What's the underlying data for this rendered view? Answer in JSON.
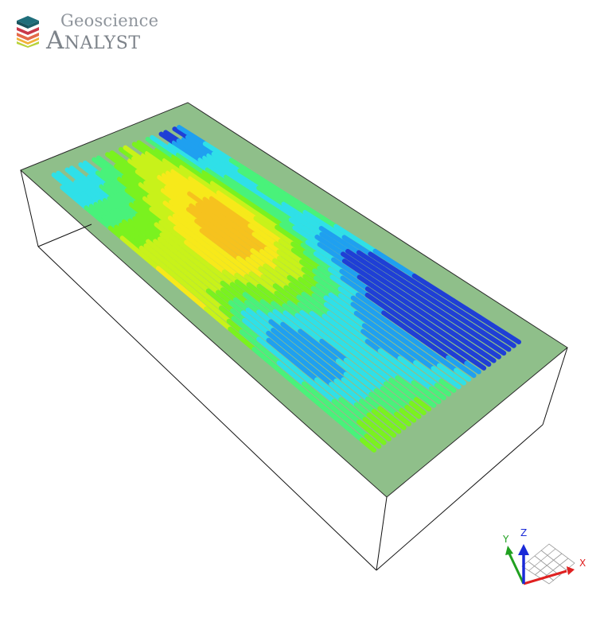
{
  "app": {
    "logo_top": "Geoscience",
    "logo_bottom": "Analyst"
  },
  "colors": {
    "background": "#ffffff",
    "box_edges": "#111111",
    "surface": "#8fbf8a",
    "logo_layers": [
      "#1f6e7b",
      "#c9384a",
      "#e46a4a",
      "#f2b23a",
      "#b9d23a"
    ],
    "palette_low_to_high": [
      "#1f3fd6",
      "#1fa0f0",
      "#2fe0e8",
      "#49f27a",
      "#7af21f",
      "#c8f21a",
      "#f7e91a",
      "#f6c21e"
    ]
  },
  "viewport": {
    "object": "airborne survey lines draped on terrain surface inside bounding box",
    "lines_count": 30
  },
  "axis_triad": {
    "x_label": "X",
    "y_label": "Y",
    "z_label": "Z",
    "x_color": "#e02020",
    "y_color": "#20a020",
    "z_color": "#1a2ad8"
  }
}
